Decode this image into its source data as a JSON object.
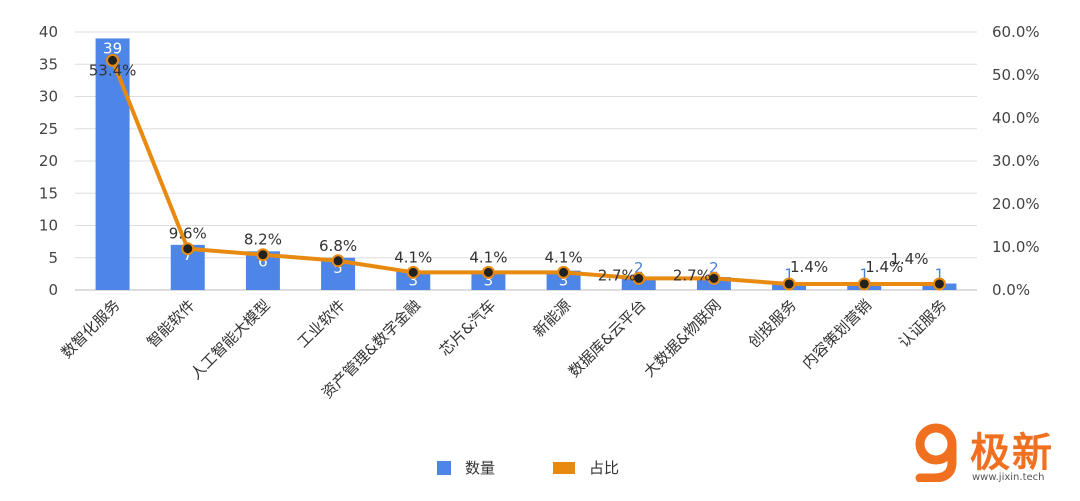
{
  "chart_data": {
    "type": "bar+line",
    "categories": [
      "数智化服务",
      "智能软件",
      "人工智能大模型",
      "工业软件",
      "资产管理&数字金融",
      "芯片&汽车",
      "新能源",
      "数据库&云平台",
      "大数据&物联网",
      "创投服务",
      "内容策划营销",
      "认证服务"
    ],
    "series": [
      {
        "name": "数量",
        "type": "bar",
        "axis": "left",
        "values": [
          39,
          7,
          6,
          5,
          3,
          3,
          3,
          2,
          2,
          1,
          1,
          1
        ],
        "labels": [
          "39",
          "7",
          "6",
          "5",
          "3",
          "3",
          "3",
          "2",
          "2",
          "1",
          "1",
          "1"
        ],
        "color": "#4e86e8"
      },
      {
        "name": "占比",
        "type": "line",
        "axis": "right",
        "values": [
          53.4,
          9.6,
          8.2,
          6.8,
          4.1,
          4.1,
          4.1,
          2.7,
          2.7,
          1.4,
          1.4,
          1.4
        ],
        "labels": [
          "53.4%",
          "9.6%",
          "8.2%",
          "6.8%",
          "4.1%",
          "4.1%",
          "4.1%",
          "2.7%",
          "2.7%",
          "1.4%",
          "1.4%",
          "1.4%"
        ],
        "color": "#e88a10"
      }
    ],
    "y_left": {
      "min": 0,
      "max": 40,
      "ticks": [
        "0",
        "5",
        "10",
        "15",
        "20",
        "25",
        "30",
        "35",
        "40"
      ]
    },
    "y_right": {
      "min": 0,
      "max": 60,
      "ticks": [
        "0.0%",
        "10.0%",
        "20.0%",
        "30.0%",
        "40.0%",
        "50.0%",
        "60.0%"
      ]
    },
    "grid": true,
    "legend_position": "bottom"
  },
  "legend": {
    "bar_label": "数量",
    "line_label": "占比"
  },
  "watermark": {
    "brand": "极新",
    "url": "www.jixin.tech",
    "color": "#f07020"
  }
}
